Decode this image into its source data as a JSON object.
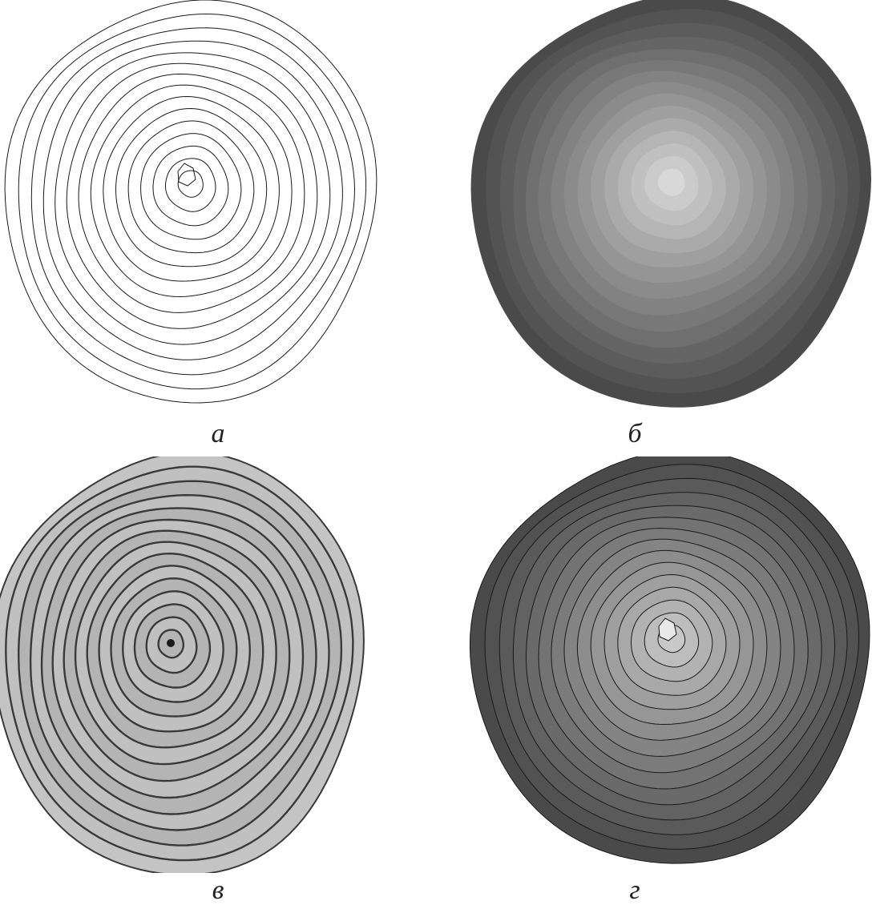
{
  "panels": [
    {
      "id": "a",
      "label": "а",
      "style": "ring-contours"
    },
    {
      "id": "b",
      "label": "б",
      "style": "shaded-zones"
    },
    {
      "id": "c",
      "label": "в",
      "style": "wood-cross-section"
    },
    {
      "id": "d",
      "label": "г",
      "style": "shaded-zones-with-contours"
    }
  ],
  "rings": 15,
  "colors": {
    "background": "#ffffff",
    "contour": "#1a1a1a",
    "outer_zone": "#4a4a4a",
    "inner_zone": "#e6e6e6",
    "wood_light": "#b9b9b9",
    "wood_ring": "#3a3a3a"
  }
}
